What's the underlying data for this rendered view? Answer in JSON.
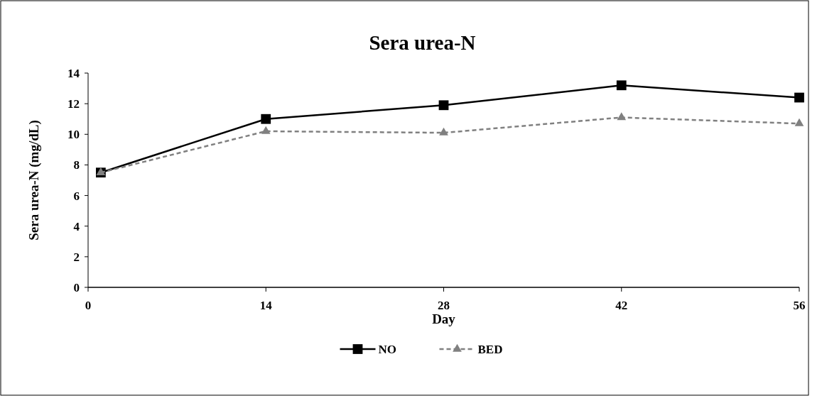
{
  "chart_data": {
    "type": "line",
    "title": "Sera urea-N",
    "xlabel": "Day",
    "ylabel": "Sera urea-N (mg/dL)",
    "x": [
      1,
      14,
      28,
      42,
      56
    ],
    "xlim": [
      0,
      56
    ],
    "xticks": [
      0,
      14,
      28,
      42,
      56
    ],
    "ylim": [
      0,
      14
    ],
    "yticks": [
      0,
      2,
      4,
      6,
      8,
      10,
      12,
      14
    ],
    "grid": false,
    "legend": "bottom",
    "series": [
      {
        "name": "NO",
        "color": "#000000",
        "values": [
          7.5,
          11.0,
          11.9,
          13.2,
          12.4
        ],
        "marker": "square",
        "line_style": "solid"
      },
      {
        "name": "BED",
        "color": "#808080",
        "values": [
          7.5,
          10.2,
          10.1,
          11.1,
          10.7
        ],
        "marker": "triangle",
        "line_style": "dashed"
      }
    ]
  }
}
